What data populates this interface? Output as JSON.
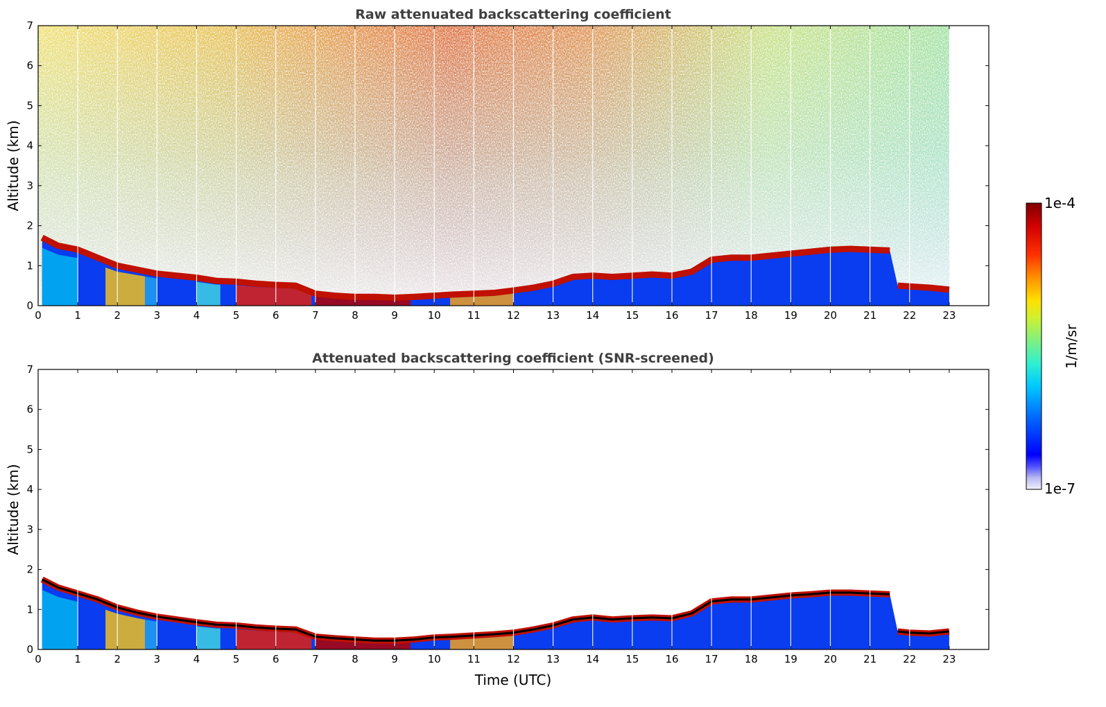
{
  "chart_data": [
    {
      "type": "heatmap",
      "title": "Raw attenuated backscattering coefficient",
      "xlabel": "",
      "ylabel": "Altitude (km)",
      "xlim": [
        0,
        24
      ],
      "ylim": [
        0,
        7
      ],
      "xticks": [
        0,
        1,
        2,
        3,
        4,
        5,
        6,
        7,
        8,
        9,
        10,
        11,
        12,
        13,
        14,
        15,
        16,
        17,
        18,
        19,
        20,
        21,
        22,
        23
      ],
      "yticks": [
        0,
        1,
        2,
        3,
        4,
        5,
        6,
        7
      ],
      "data_end_hour": 23,
      "screened": false,
      "layer_top_km": [
        [
          0.1,
          1.7
        ],
        [
          0.5,
          1.5
        ],
        [
          1,
          1.4
        ],
        [
          1.5,
          1.2
        ],
        [
          2,
          1.0
        ],
        [
          2.5,
          0.9
        ],
        [
          3,
          0.8
        ],
        [
          3.5,
          0.75
        ],
        [
          4,
          0.7
        ],
        [
          4.5,
          0.62
        ],
        [
          5,
          0.6
        ],
        [
          5.5,
          0.55
        ],
        [
          6,
          0.52
        ],
        [
          6.5,
          0.5
        ],
        [
          7,
          0.3
        ],
        [
          7.5,
          0.25
        ],
        [
          8,
          0.22
        ],
        [
          8.5,
          0.22
        ],
        [
          9,
          0.2
        ],
        [
          9.5,
          0.22
        ],
        [
          10,
          0.25
        ],
        [
          10.5,
          0.28
        ],
        [
          11,
          0.3
        ],
        [
          11.5,
          0.32
        ],
        [
          12,
          0.38
        ],
        [
          12.5,
          0.45
        ],
        [
          13,
          0.55
        ],
        [
          13.5,
          0.72
        ],
        [
          14,
          0.75
        ],
        [
          14.5,
          0.72
        ],
        [
          15,
          0.75
        ],
        [
          15.5,
          0.78
        ],
        [
          16,
          0.75
        ],
        [
          16.5,
          0.85
        ],
        [
          17,
          1.15
        ],
        [
          17.5,
          1.2
        ],
        [
          18,
          1.2
        ],
        [
          18.5,
          1.25
        ],
        [
          19,
          1.3
        ],
        [
          19.5,
          1.35
        ],
        [
          20,
          1.4
        ],
        [
          20.5,
          1.42
        ],
        [
          21,
          1.4
        ],
        [
          21.5,
          1.38
        ],
        [
          21.7,
          0.5
        ],
        [
          22,
          0.48
        ],
        [
          22.5,
          0.45
        ],
        [
          23,
          0.4
        ]
      ]
    },
    {
      "type": "heatmap",
      "title": "Attenuated backscattering coefficient (SNR-screened)",
      "xlabel": "Time (UTC)",
      "ylabel": "Altitude (km)",
      "xlim": [
        0,
        24
      ],
      "ylim": [
        0,
        7
      ],
      "xticks": [
        0,
        1,
        2,
        3,
        4,
        5,
        6,
        7,
        8,
        9,
        10,
        11,
        12,
        13,
        14,
        15,
        16,
        17,
        18,
        19,
        20,
        21,
        22,
        23
      ],
      "yticks": [
        0,
        1,
        2,
        3,
        4,
        5,
        6,
        7
      ],
      "data_end_hour": 23,
      "screened": true,
      "layer_top_km": [
        [
          0.1,
          1.75
        ],
        [
          0.5,
          1.55
        ],
        [
          1,
          1.4
        ],
        [
          1.5,
          1.25
        ],
        [
          2,
          1.05
        ],
        [
          2.5,
          0.92
        ],
        [
          3,
          0.82
        ],
        [
          3.5,
          0.75
        ],
        [
          4,
          0.68
        ],
        [
          4.5,
          0.62
        ],
        [
          5,
          0.6
        ],
        [
          5.5,
          0.55
        ],
        [
          6,
          0.52
        ],
        [
          6.5,
          0.5
        ],
        [
          7,
          0.32
        ],
        [
          7.5,
          0.28
        ],
        [
          8,
          0.25
        ],
        [
          8.5,
          0.22
        ],
        [
          9,
          0.22
        ],
        [
          9.5,
          0.25
        ],
        [
          10,
          0.3
        ],
        [
          10.5,
          0.32
        ],
        [
          11,
          0.35
        ],
        [
          11.5,
          0.38
        ],
        [
          12,
          0.42
        ],
        [
          12.5,
          0.5
        ],
        [
          13,
          0.6
        ],
        [
          13.5,
          0.75
        ],
        [
          14,
          0.8
        ],
        [
          14.5,
          0.75
        ],
        [
          15,
          0.78
        ],
        [
          15.5,
          0.8
        ],
        [
          16,
          0.78
        ],
        [
          16.5,
          0.9
        ],
        [
          17,
          1.2
        ],
        [
          17.5,
          1.25
        ],
        [
          18,
          1.25
        ],
        [
          18.5,
          1.3
        ],
        [
          19,
          1.35
        ],
        [
          19.5,
          1.38
        ],
        [
          20,
          1.42
        ],
        [
          20.5,
          1.42
        ],
        [
          21,
          1.4
        ],
        [
          21.5,
          1.38
        ],
        [
          21.7,
          0.45
        ],
        [
          22,
          0.42
        ],
        [
          22.5,
          0.4
        ],
        [
          23,
          0.45
        ]
      ]
    }
  ],
  "colorbar": {
    "max_label": "1e-4",
    "min_label": "1e-7",
    "unit_label": "1/m/sr",
    "colors": [
      "#e8e8f8",
      "#c8c8f0",
      "#a8a8f0",
      "#7878f0",
      "#0000ff",
      "#0040ff",
      "#0080ff",
      "#00b0ff",
      "#00e0f0",
      "#40f0c0",
      "#80f080",
      "#c0f040",
      "#f0f000",
      "#ffc000",
      "#ff8000",
      "#ff4000",
      "#e00000",
      "#b00000",
      "#800000"
    ]
  }
}
